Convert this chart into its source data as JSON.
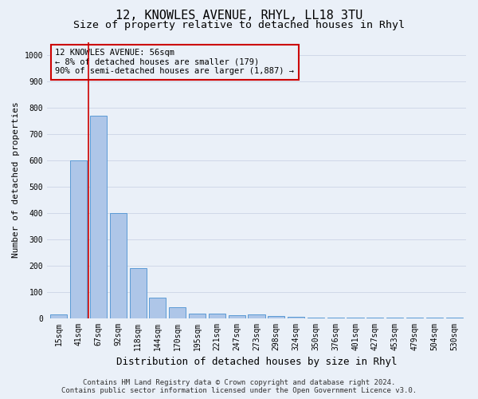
{
  "title": "12, KNOWLES AVENUE, RHYL, LL18 3TU",
  "subtitle": "Size of property relative to detached houses in Rhyl",
  "xlabel": "Distribution of detached houses by size in Rhyl",
  "ylabel": "Number of detached properties",
  "footer_line1": "Contains HM Land Registry data © Crown copyright and database right 2024.",
  "footer_line2": "Contains public sector information licensed under the Open Government Licence v3.0.",
  "categories": [
    "15sqm",
    "41sqm",
    "67sqm",
    "92sqm",
    "118sqm",
    "144sqm",
    "170sqm",
    "195sqm",
    "221sqm",
    "247sqm",
    "273sqm",
    "298sqm",
    "324sqm",
    "350sqm",
    "376sqm",
    "401sqm",
    "427sqm",
    "453sqm",
    "479sqm",
    "504sqm",
    "530sqm"
  ],
  "bar_values": [
    15,
    600,
    770,
    400,
    190,
    77,
    40,
    18,
    17,
    10,
    14,
    8,
    5,
    2,
    2,
    1,
    1,
    1,
    1,
    1,
    1
  ],
  "bar_color": "#aec6e8",
  "bar_edge_color": "#5b9bd5",
  "grid_color": "#d0d8e8",
  "background_color": "#eaf0f8",
  "vline_x_index": 1.5,
  "vline_color": "#cc0000",
  "annotation_box_text": "12 KNOWLES AVENUE: 56sqm\n← 8% of detached houses are smaller (179)\n90% of semi-detached houses are larger (1,887) →",
  "ylim": [
    0,
    1050
  ],
  "yticks": [
    0,
    100,
    200,
    300,
    400,
    500,
    600,
    700,
    800,
    900,
    1000
  ],
  "title_fontsize": 11,
  "subtitle_fontsize": 9.5,
  "xlabel_fontsize": 9,
  "ylabel_fontsize": 8,
  "tick_fontsize": 7,
  "annotation_fontsize": 7.5,
  "footer_fontsize": 6.5
}
